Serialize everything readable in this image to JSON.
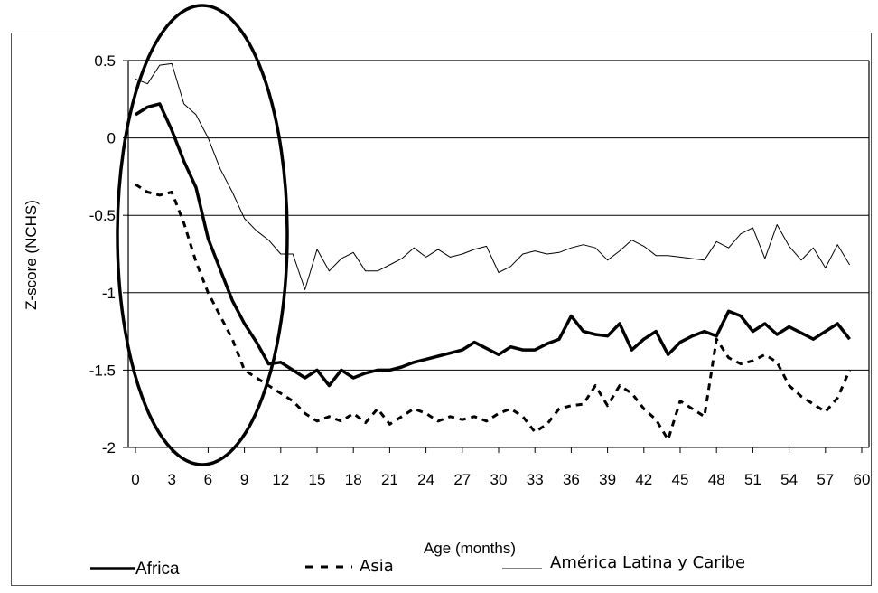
{
  "chart_data": {
    "type": "line",
    "xlabel": "Age (months)",
    "ylabel": "Z-score (NCHS)",
    "xlim": [
      0,
      60
    ],
    "ylim": [
      -2,
      0.5
    ],
    "x_ticks": [
      "0",
      "3",
      "6",
      "9",
      "12",
      "15",
      "18",
      "21",
      "24",
      "27",
      "30",
      "33",
      "36",
      "39",
      "42",
      "45",
      "48",
      "51",
      "54",
      "57",
      "60"
    ],
    "y_ticks": [
      "0.5",
      "0",
      "-0.5",
      "-1",
      "-1.5",
      "-2"
    ],
    "grid": "horizontal",
    "legend_position": "bottom",
    "annotation": "ellipse highlighting ages 0-12 months",
    "colors": {
      "line": "#000000",
      "grid": "#000000",
      "frame": "#555555"
    },
    "series": [
      {
        "name": "Africa",
        "style": "thick-solid",
        "x": [
          0,
          1,
          2,
          3,
          4,
          5,
          6,
          7,
          8,
          9,
          10,
          11,
          12,
          13,
          14,
          15,
          16,
          17,
          18,
          19,
          20,
          21,
          22,
          23,
          24,
          25,
          26,
          27,
          28,
          29,
          30,
          31,
          32,
          33,
          34,
          35,
          36,
          37,
          38,
          39,
          40,
          41,
          42,
          43,
          44,
          45,
          46,
          47,
          48,
          49,
          50,
          51,
          52,
          53,
          54,
          55,
          56,
          57,
          58,
          59
        ],
        "y": [
          0.15,
          0.2,
          0.22,
          0.05,
          -0.15,
          -0.32,
          -0.65,
          -0.85,
          -1.05,
          -1.2,
          -1.32,
          -1.46,
          -1.45,
          -1.5,
          -1.55,
          -1.5,
          -1.6,
          -1.5,
          -1.55,
          -1.52,
          -1.5,
          -1.5,
          -1.48,
          -1.45,
          -1.43,
          -1.41,
          -1.39,
          -1.37,
          -1.32,
          -1.36,
          -1.4,
          -1.35,
          -1.37,
          -1.37,
          -1.33,
          -1.3,
          -1.15,
          -1.25,
          -1.27,
          -1.28,
          -1.2,
          -1.37,
          -1.3,
          -1.25,
          -1.4,
          -1.32,
          -1.28,
          -1.25,
          -1.28,
          -1.12,
          -1.15,
          -1.25,
          -1.2,
          -1.27,
          -1.22,
          -1.26,
          -1.3,
          -1.25,
          -1.2,
          -1.3
        ]
      },
      {
        "name": "Asia",
        "style": "dashed",
        "x": [
          0,
          1,
          2,
          3,
          4,
          5,
          6,
          7,
          8,
          9,
          10,
          11,
          12,
          13,
          14,
          15,
          16,
          17,
          18,
          19,
          20,
          21,
          22,
          23,
          24,
          25,
          26,
          27,
          28,
          29,
          30,
          31,
          32,
          33,
          34,
          35,
          36,
          37,
          38,
          39,
          40,
          41,
          42,
          43,
          44,
          45,
          46,
          47,
          48,
          49,
          50,
          51,
          52,
          53,
          54,
          55,
          56,
          57,
          58,
          59
        ],
        "y": [
          -0.3,
          -0.35,
          -0.37,
          -0.35,
          -0.55,
          -0.8,
          -1.0,
          -1.15,
          -1.3,
          -1.5,
          -1.55,
          -1.6,
          -1.65,
          -1.7,
          -1.78,
          -1.83,
          -1.8,
          -1.83,
          -1.78,
          -1.84,
          -1.75,
          -1.85,
          -1.8,
          -1.75,
          -1.78,
          -1.83,
          -1.8,
          -1.82,
          -1.8,
          -1.83,
          -1.78,
          -1.75,
          -1.8,
          -1.9,
          -1.85,
          -1.75,
          -1.73,
          -1.72,
          -1.6,
          -1.73,
          -1.6,
          -1.65,
          -1.75,
          -1.82,
          -1.95,
          -1.7,
          -1.75,
          -1.8,
          -1.3,
          -1.42,
          -1.46,
          -1.44,
          -1.4,
          -1.45,
          -1.6,
          -1.67,
          -1.72,
          -1.77,
          -1.68,
          -1.5
        ]
      },
      {
        "name": "América Latina y Caribe",
        "style": "thin-solid",
        "x": [
          0,
          1,
          2,
          3,
          4,
          5,
          6,
          7,
          8,
          9,
          10,
          11,
          12,
          13,
          14,
          15,
          16,
          17,
          18,
          19,
          20,
          21,
          22,
          23,
          24,
          25,
          26,
          27,
          28,
          29,
          30,
          31,
          32,
          33,
          34,
          35,
          36,
          37,
          38,
          39,
          40,
          41,
          42,
          43,
          44,
          45,
          46,
          47,
          48,
          49,
          50,
          51,
          52,
          53,
          54,
          55,
          56,
          57,
          58,
          59
        ],
        "y": [
          0.38,
          0.35,
          0.47,
          0.48,
          0.22,
          0.15,
          0.0,
          -0.2,
          -0.35,
          -0.52,
          -0.6,
          -0.66,
          -0.75,
          -0.75,
          -0.98,
          -0.72,
          -0.86,
          -0.78,
          -0.74,
          -0.86,
          -0.86,
          -0.82,
          -0.78,
          -0.71,
          -0.77,
          -0.72,
          -0.77,
          -0.75,
          -0.72,
          -0.7,
          -0.87,
          -0.83,
          -0.75,
          -0.73,
          -0.75,
          -0.74,
          -0.71,
          -0.69,
          -0.71,
          -0.79,
          -0.73,
          -0.66,
          -0.7,
          -0.76,
          -0.76,
          -0.77,
          -0.78,
          -0.79,
          -0.67,
          -0.71,
          -0.62,
          -0.58,
          -0.78,
          -0.56,
          -0.7,
          -0.79,
          -0.71,
          -0.84,
          -0.69,
          -0.82
        ]
      }
    ]
  }
}
